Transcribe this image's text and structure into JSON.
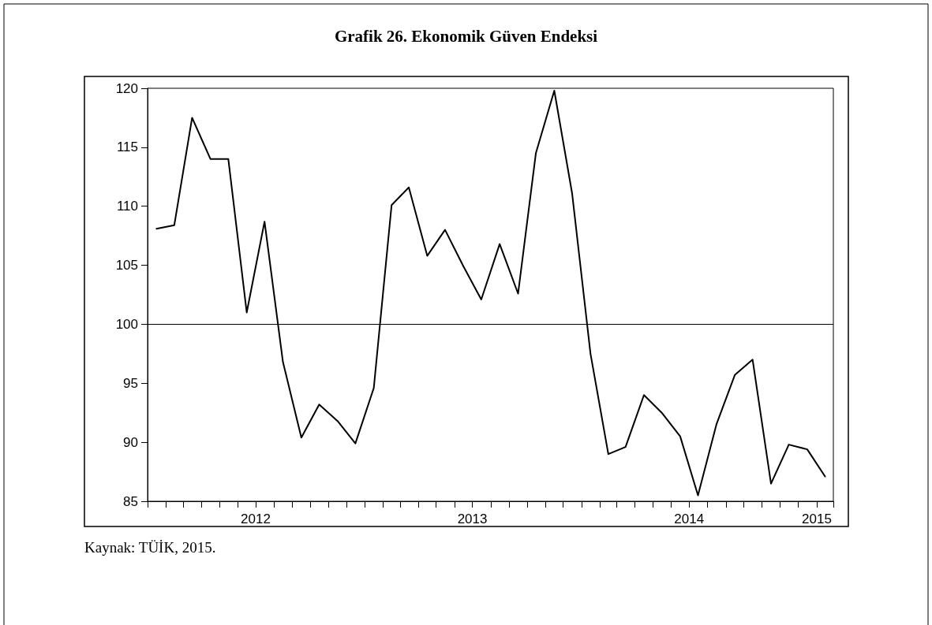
{
  "chart_data": {
    "type": "line",
    "title": "Grafik 26. Ekonomik Güven Endeksi",
    "annotations": [
      "Kaynak: TÜİK, 2015."
    ],
    "x": [
      "2012-01-16",
      "2012-02-15",
      "2012-03-16",
      "2012-04-16",
      "2012-05-16",
      "2012-06-16",
      "2012-07-16",
      "2012-08-16",
      "2012-09-16",
      "2012-10-16",
      "2012-11-16",
      "2012-12-16",
      "2013-01-16",
      "2013-02-15",
      "2013-03-16",
      "2013-04-16",
      "2013-05-16",
      "2013-06-16",
      "2013-07-16",
      "2013-08-16",
      "2013-09-16",
      "2013-10-16",
      "2013-11-16",
      "2013-12-16",
      "2014-01-16",
      "2014-02-15",
      "2014-03-16",
      "2014-04-16",
      "2014-05-16",
      "2014-06-16",
      "2014-07-16",
      "2014-08-16",
      "2014-09-16",
      "2014-10-16",
      "2014-11-16",
      "2014-12-16",
      "2015-01-16",
      "2015-02-15"
    ],
    "series": [
      {
        "color": "#000000",
        "values": [
          108.1,
          108.4,
          117.5,
          114.0,
          114.0,
          101.0,
          108.7,
          96.8,
          90.4,
          93.2,
          91.8,
          89.9,
          94.6,
          110.1,
          111.6,
          105.8,
          108.0,
          104.9,
          102.1,
          106.8,
          102.6,
          114.5,
          119.8,
          111.1,
          97.5,
          89.0,
          89.6,
          94.0,
          92.5,
          90.5,
          85.5,
          91.5,
          95.7,
          97.0,
          86.5,
          89.8,
          89.4,
          87.1
        ]
      }
    ],
    "xlim": [
      "2012-01",
      "2015-03"
    ],
    "xticks": [
      {
        "value": "2012-01",
        "label": null
      },
      {
        "value": "2012-02",
        "label": null
      },
      {
        "value": "2012-03",
        "label": null
      },
      {
        "value": "2012-04",
        "label": null
      },
      {
        "value": "2012-05",
        "label": null
      },
      {
        "value": "2012-06",
        "label": null
      },
      {
        "value": "2012-07",
        "label": "2012"
      },
      {
        "value": "2012-08",
        "label": null
      },
      {
        "value": "2012-09",
        "label": null
      },
      {
        "value": "2012-10",
        "label": null
      },
      {
        "value": "2012-11",
        "label": null
      },
      {
        "value": "2012-12",
        "label": null
      },
      {
        "value": "2013-01",
        "label": null
      },
      {
        "value": "2013-02",
        "label": null
      },
      {
        "value": "2013-03",
        "label": null
      },
      {
        "value": "2013-04",
        "label": null
      },
      {
        "value": "2013-05",
        "label": null
      },
      {
        "value": "2013-06",
        "label": null
      },
      {
        "value": "2013-07",
        "label": "2013"
      },
      {
        "value": "2013-08",
        "label": null
      },
      {
        "value": "2013-09",
        "label": null
      },
      {
        "value": "2013-10",
        "label": null
      },
      {
        "value": "2013-11",
        "label": null
      },
      {
        "value": "2013-12",
        "label": null
      },
      {
        "value": "2014-01",
        "label": null
      },
      {
        "value": "2014-02",
        "label": null
      },
      {
        "value": "2014-03",
        "label": null
      },
      {
        "value": "2014-04",
        "label": null
      },
      {
        "value": "2014-05",
        "label": null
      },
      {
        "value": "2014-06",
        "label": null
      },
      {
        "value": "2014-07",
        "label": "2014"
      },
      {
        "value": "2014-08",
        "label": null
      },
      {
        "value": "2014-09",
        "label": null
      },
      {
        "value": "2014-10",
        "label": null
      },
      {
        "value": "2014-11",
        "label": null
      },
      {
        "value": "2014-12",
        "label": null
      },
      {
        "value": "2015-01",
        "label": null
      },
      {
        "value": "2015-02",
        "label": "2015"
      },
      {
        "value": "2015-03",
        "label": null
      }
    ],
    "ylim": [
      85,
      120
    ],
    "yticks": [
      85,
      90,
      95,
      100,
      105,
      110,
      115,
      120
    ],
    "ref_lines": [
      {
        "axis": "y",
        "value": 100,
        "color": "#000000"
      }
    ],
    "grid": false,
    "marker": "none",
    "line_style": "solid"
  }
}
